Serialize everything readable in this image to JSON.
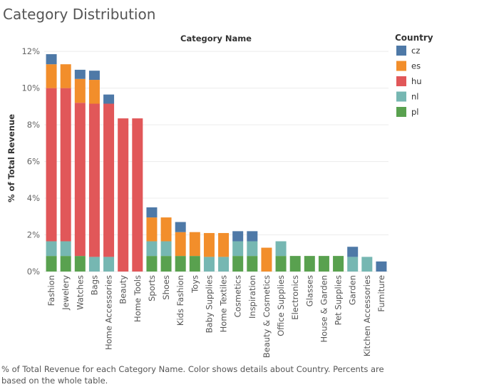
{
  "page": {
    "title": "Category Distribution",
    "caption": "% of Total Revenue for each Category Name.  Color shows details about Country. Percents are based on the whole table."
  },
  "legend": {
    "title": "Country",
    "items": [
      {
        "label": "cz",
        "color": "#4e79a7"
      },
      {
        "label": "es",
        "color": "#f28e2b"
      },
      {
        "label": "hu",
        "color": "#e15759"
      },
      {
        "label": "nl",
        "color": "#76b7b2"
      },
      {
        "label": "pl",
        "color": "#59a14f"
      }
    ]
  },
  "chart_data": {
    "type": "bar",
    "stacked": true,
    "title": "Category Distribution",
    "column_header": "Category Name",
    "ylabel": "% of Total Revenue",
    "ylim": [
      0,
      12.2
    ],
    "yticks": [
      0,
      2,
      4,
      6,
      8,
      10,
      12
    ],
    "ytick_labels": [
      "0%",
      "2%",
      "4%",
      "6%",
      "8%",
      "10%",
      "12%"
    ],
    "grid": true,
    "legend_position": "right",
    "categories": [
      "Fashion",
      "Jewelery",
      "Watches",
      "Bags",
      "Home Accessories",
      "Beauty",
      "Home Tools",
      "Sports",
      "Shoes",
      "Kids Fashion",
      "Toys",
      "Baby Supplies",
      "Home Textiles",
      "Cosmetics",
      "Inspiration",
      "Beauty & Cosmetics",
      "Office Supplies",
      "Electronics",
      "Glasses",
      "House & Garden",
      "Pet Supplies",
      "Garden",
      "Kitchen Accessories",
      "Furniture"
    ],
    "series": [
      {
        "name": "pl",
        "color": "#59a14f",
        "values": [
          0.85,
          0.85,
          0.85,
          0,
          0,
          0,
          0,
          0.85,
          0.85,
          0.85,
          0.85,
          0,
          0,
          0.85,
          0.85,
          0,
          0.85,
          0.85,
          0.85,
          0.85,
          0.85,
          0,
          0,
          0
        ]
      },
      {
        "name": "nl",
        "color": "#76b7b2",
        "values": [
          0.8,
          0.8,
          0,
          0.8,
          0.8,
          0,
          0,
          0.8,
          0.8,
          0,
          0,
          0.8,
          0.8,
          0.8,
          0.8,
          0,
          0.8,
          0,
          0,
          0,
          0,
          0.8,
          0.8,
          0
        ]
      },
      {
        "name": "hu",
        "color": "#e15759",
        "values": [
          8.35,
          8.35,
          8.35,
          8.35,
          8.35,
          8.35,
          8.35,
          0,
          0,
          0,
          0,
          0,
          0,
          0,
          0,
          0,
          0,
          0,
          0,
          0,
          0,
          0,
          0,
          0
        ]
      },
      {
        "name": "es",
        "color": "#f28e2b",
        "values": [
          1.3,
          1.3,
          1.3,
          1.3,
          0,
          0,
          0,
          1.3,
          1.3,
          1.3,
          1.3,
          1.3,
          1.3,
          0,
          0,
          1.3,
          0,
          0,
          0,
          0,
          0,
          0,
          0,
          0
        ]
      },
      {
        "name": "cz",
        "color": "#4e79a7",
        "values": [
          0.55,
          0,
          0.5,
          0.5,
          0.5,
          0,
          0,
          0.55,
          0,
          0.55,
          0,
          0,
          0,
          0.55,
          0.55,
          0,
          0,
          0,
          0,
          0,
          0,
          0.55,
          0,
          0.55
        ]
      }
    ]
  }
}
